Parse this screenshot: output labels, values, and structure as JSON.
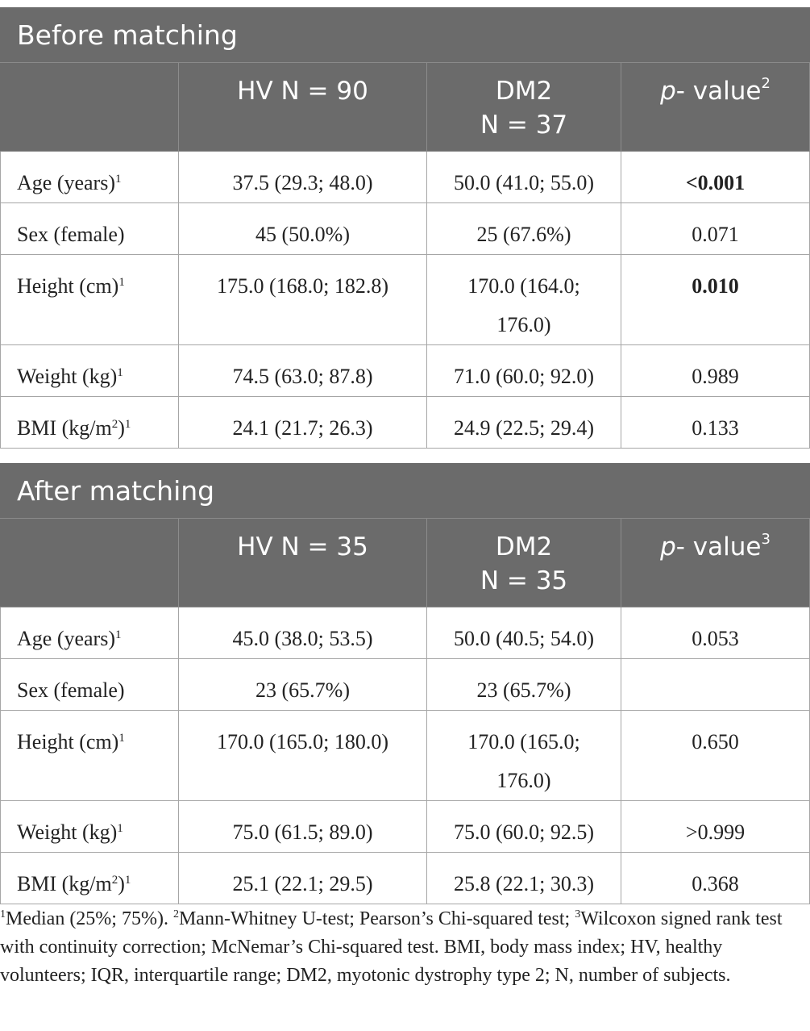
{
  "tables": [
    {
      "title": "Before matching",
      "headers": {
        "col1": "HV N = 90",
        "col2_line1": "DM2",
        "col2_line2": "N = 37",
        "pvalue_italic": "p",
        "pvalue_text": "- value",
        "pvalue_sup": "2"
      },
      "rows": [
        {
          "label": "Age (years)",
          "sup": "1",
          "hv": "37.5 (29.3; 48.0)",
          "dm2": "50.0 (41.0; 55.0)",
          "p": "<0.001",
          "p_bold": true
        },
        {
          "label": "Sex (female)",
          "sup": "",
          "hv": "45 (50.0%)",
          "dm2": "25 (67.6%)",
          "p": "0.071",
          "p_bold": false
        },
        {
          "label": "Height (cm)",
          "sup": "1",
          "hv": "175.0 (168.0; 182.8)",
          "dm2": "170.0 (164.0; 176.0)",
          "p": "0.010",
          "p_bold": true
        },
        {
          "label": "Weight (kg)",
          "sup": "1",
          "hv": "74.5 (63.0; 87.8)",
          "dm2": "71.0 (60.0; 92.0)",
          "p": "0.989",
          "p_bold": false
        },
        {
          "label": "BMI (kg/m",
          "label_sup": "2",
          "label_end": ")",
          "sup": "1",
          "hv": "24.1 (21.7; 26.3)",
          "dm2": "24.9 (22.5; 29.4)",
          "p": "0.133",
          "p_bold": false
        }
      ]
    },
    {
      "title": "After matching",
      "headers": {
        "col1": "HV N = 35",
        "col2_line1": "DM2",
        "col2_line2": "N = 35",
        "pvalue_italic": "p",
        "pvalue_text": "- value",
        "pvalue_sup": "3"
      },
      "rows": [
        {
          "label": "Age (years)",
          "sup": "1",
          "hv": "45.0 (38.0; 53.5)",
          "dm2": "50.0 (40.5; 54.0)",
          "p": "0.053",
          "p_bold": false
        },
        {
          "label": "Sex (female)",
          "sup": "",
          "hv": "23 (65.7%)",
          "dm2": "23 (65.7%)",
          "p": "",
          "p_bold": false
        },
        {
          "label": "Height (cm)",
          "sup": "1",
          "hv": "170.0 (165.0; 180.0)",
          "dm2": "170.0 (165.0; 176.0)",
          "p": "0.650",
          "p_bold": false
        },
        {
          "label": "Weight (kg)",
          "sup": "1",
          "hv": "75.0 (61.5; 89.0)",
          "dm2": "75.0 (60.0; 92.5)",
          "p": ">0.999",
          "p_bold": false
        },
        {
          "label": "BMI (kg/m",
          "label_sup": "2",
          "label_end": ")",
          "sup": "1",
          "hv": "25.1 (22.1; 29.5)",
          "dm2": "25.8 (22.1; 30.3)",
          "p": "0.368",
          "p_bold": false
        }
      ]
    }
  ],
  "footnote": {
    "sup1": "1",
    "text1": "Median (25%; 75%). ",
    "sup2": "2",
    "text2": "Mann-Whitney U-test; Pearson’s Chi-squared test; ",
    "sup3": "3",
    "text3": "Wilcoxon signed rank test with continuity correction; McNemar’s Chi-squared test. BMI, body mass index; HV, healthy volunteers; IQR, interquartile range; DM2, myotonic dystrophy type 2; N, number of subjects."
  }
}
